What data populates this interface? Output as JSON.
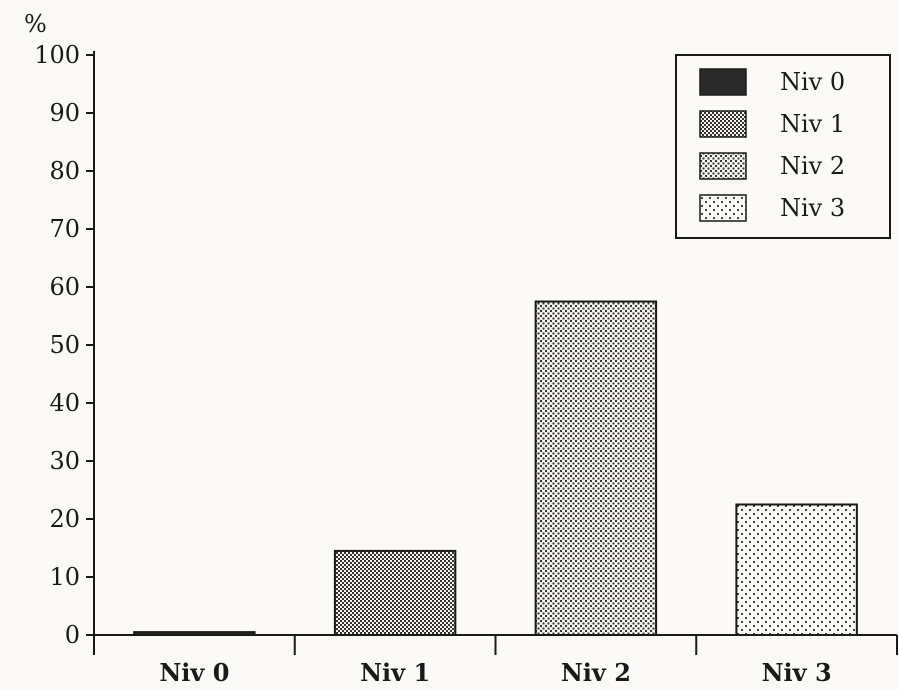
{
  "chart_data": {
    "type": "bar",
    "ylabel": "%",
    "categories": [
      "Niv 0",
      "Niv 1",
      "Niv 2",
      "Niv 3"
    ],
    "values": [
      0.5,
      14.5,
      57.5,
      22.5
    ],
    "ylim": [
      0,
      100
    ],
    "yticks": [
      "0",
      "10",
      "20",
      "30",
      "40",
      "50",
      "60",
      "70",
      "80",
      "90",
      "100"
    ],
    "legend": {
      "placement": "top-right",
      "entries": [
        "Niv 0",
        "Niv 1",
        "Niv 2",
        "Niv 3"
      ]
    },
    "grid": false
  }
}
